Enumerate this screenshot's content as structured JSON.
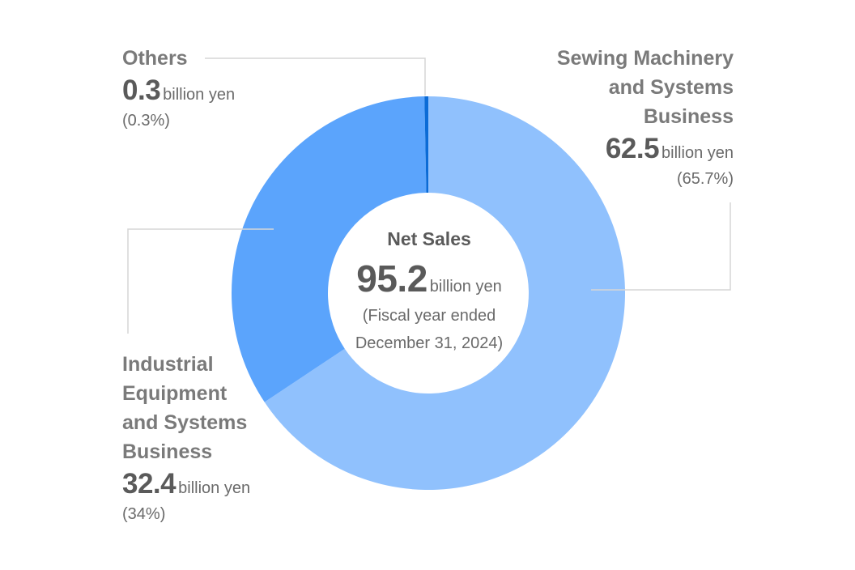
{
  "chart_data": {
    "type": "pie",
    "variant": "donut",
    "unit": "billion yen",
    "center": {
      "title": "Net Sales",
      "total": "95.2",
      "unit": "billion yen",
      "period_line1": "(Fiscal year ended",
      "period_line2": "December 31, 2024)"
    },
    "segments": [
      {
        "name_lines": [
          "Sewing Machinery",
          "and Systems",
          "Business"
        ],
        "value": 62.5,
        "value_text": "62.5",
        "unit": "billion yen",
        "pct_text": "(65.7%)",
        "color": "#90c1fd"
      },
      {
        "name_lines": [
          "Industrial",
          "Equipment",
          "and Systems",
          "Business"
        ],
        "value": 32.4,
        "value_text": "32.4",
        "unit": "billion yen",
        "pct_text": "(34%)",
        "color": "#5ba4fc"
      },
      {
        "name_lines": [
          "Others"
        ],
        "value": 0.3,
        "value_text": "0.3",
        "unit": "billion yen",
        "pct_text": "(0.3%)",
        "color": "#0b6bd6"
      }
    ]
  }
}
